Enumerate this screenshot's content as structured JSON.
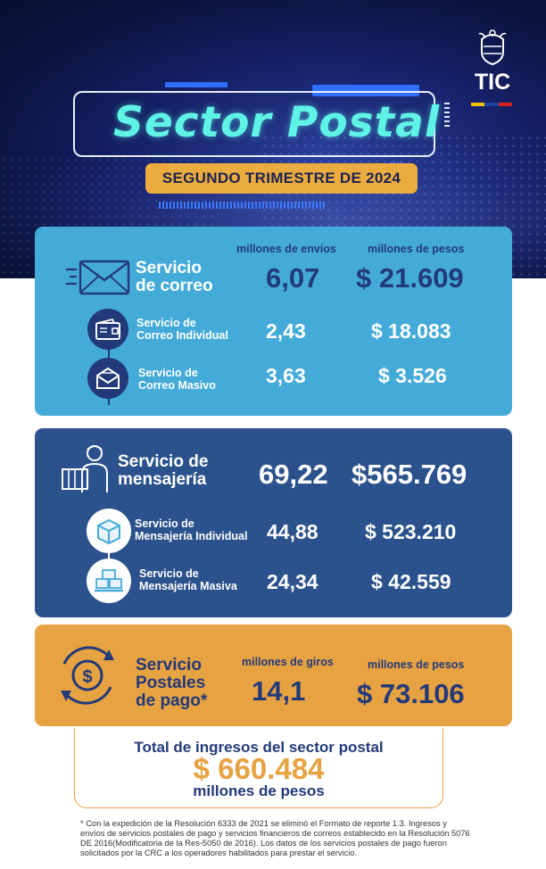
{
  "header": {
    "title": "Sector Postal",
    "subtitle": "SEGUNDO TRIMESTRE DE 2024",
    "logo_text": "TIC"
  },
  "colors": {
    "navy": "#0b1440",
    "cyan_title": "#5ff2e6",
    "orange": "#e7a242",
    "light_blue": "#44abd9",
    "dark_blue": "#2b528c",
    "text_blue": "#233a7a",
    "flag": [
      "#f5c400",
      "#1f3f9c",
      "#d6231e"
    ]
  },
  "correo": {
    "col_envios": "millones de envíos",
    "col_pesos": "millones de pesos",
    "main_label_1": "Servicio",
    "main_label_2": "de correo",
    "main_envios": "6,07",
    "main_pesos": "$ 21.609",
    "rows": [
      {
        "label_1": "Servicio de",
        "label_2": "Correo Individual",
        "envios": "2,43",
        "pesos": "$ 18.083",
        "icon": "wallet-icon"
      },
      {
        "label_1": "Servicio de",
        "label_2": "Correo Masivo",
        "envios": "3,63",
        "pesos": "$ 3.526",
        "icon": "mail-send-icon"
      }
    ]
  },
  "mensajeria": {
    "main_label_1": "Servicio de",
    "main_label_2": "mensajería",
    "main_envios": "69,22",
    "main_pesos": "$565.769",
    "rows": [
      {
        "label_1": "Servicio de",
        "label_2": "Mensajería Individual",
        "envios": "44,88",
        "pesos": "$ 523.210",
        "icon": "box-icon"
      },
      {
        "label_1": "Servicio de",
        "label_2": "Mensajería Masiva",
        "envios": "24,34",
        "pesos": "$ 42.559",
        "icon": "pallet-boxes-icon"
      }
    ]
  },
  "pago": {
    "label_1": "Servicio",
    "label_2": "Postales",
    "label_3": "de pago*",
    "col_giros": "millones de giros",
    "col_pesos": "millones de pesos",
    "giros": "14,1",
    "pesos": "$ 73.106"
  },
  "total": {
    "title": "Total de ingresos del sector postal",
    "value": "$ 660.484",
    "unit": "millones de pesos"
  },
  "footnote": "* Con la expedición de la Resolución 6333 de 2021 se eliminó el Formato de reporte 1.3. Ingresos y envíos de servicios postales de pago y servicios financieros de correos establecido en la Resolución 5076 DE 2016(Modificatoria de la Res-5050 de 2016). Los datos de los servicios postales de pago fueron solicitados por la CRC a los operadores habilitados para prestar el servicio."
}
